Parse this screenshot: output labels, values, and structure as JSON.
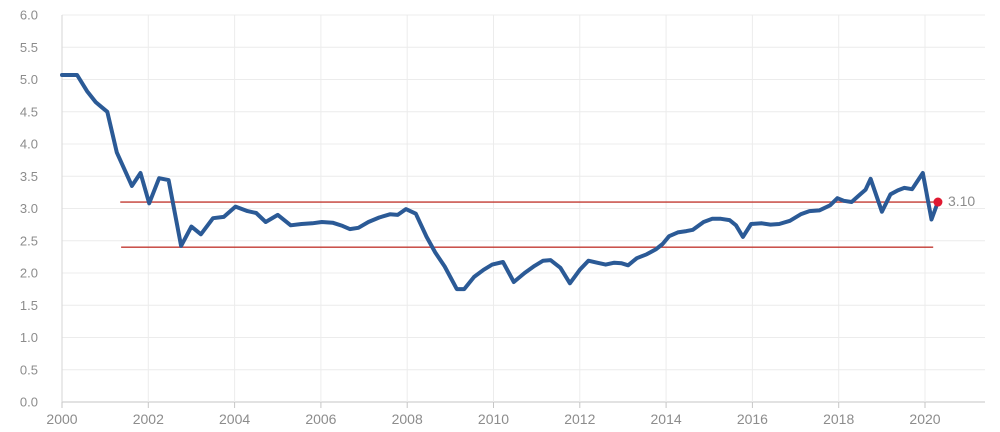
{
  "chart": {
    "background": "#ffffff",
    "colors": {
      "grid": "#ececec",
      "axis_line": "#c6c6c6",
      "left_axis_line": "#d6d6d6",
      "tick_mark": "#c6c6c6",
      "tick_label": "#8c8c8c",
      "series": "#2b5a96",
      "reference_line": "#c23a32",
      "end_dot": "#e01931",
      "end_label": "#8c8c8c"
    },
    "y_axis": {
      "min": 0,
      "max": 6,
      "tick_values": [
        6.0,
        5.5,
        5.0,
        4.5,
        4.0,
        3.5,
        3.0,
        2.5,
        2.0,
        1.5,
        1.0,
        0.5,
        0.0
      ],
      "tick_labels": [
        "6.0",
        "5.5",
        "5.0",
        "4.5",
        "4.0",
        "3.5",
        "3.0",
        "2.5",
        "2.0",
        "1.5",
        "1.0",
        "0.5",
        "0.0"
      ]
    },
    "x_axis": {
      "min": 2000,
      "max": 2021.4,
      "tick_values": [
        2000,
        2002,
        2004,
        2006,
        2008,
        2010,
        2012,
        2014,
        2016,
        2018,
        2020
      ],
      "tick_labels": [
        "2000",
        "2002",
        "2004",
        "2006",
        "2008",
        "2010",
        "2012",
        "2014",
        "2016",
        "2018",
        "2020"
      ]
    },
    "chart_data": {
      "type": "line",
      "title": "",
      "xlabel": "",
      "ylabel": "",
      "ylim": [
        0,
        6
      ],
      "grid": true,
      "legend": "none",
      "series": [
        {
          "name": "main-series",
          "color": "#2b5a96",
          "stroke_width": 4,
          "points": [
            [
              2000.0,
              5.07
            ],
            [
              2000.35,
              5.07
            ],
            [
              2000.58,
              4.82
            ],
            [
              2000.78,
              4.65
            ],
            [
              2000.92,
              4.57
            ],
            [
              2001.05,
              4.5
            ],
            [
              2001.27,
              3.87
            ],
            [
              2001.62,
              3.35
            ],
            [
              2001.82,
              3.55
            ],
            [
              2002.02,
              3.08
            ],
            [
              2002.25,
              3.47
            ],
            [
              2002.47,
              3.44
            ],
            [
              2002.76,
              2.42
            ],
            [
              2003.0,
              2.72
            ],
            [
              2003.22,
              2.6
            ],
            [
              2003.5,
              2.85
            ],
            [
              2003.75,
              2.87
            ],
            [
              2004.02,
              3.03
            ],
            [
              2004.3,
              2.96
            ],
            [
              2004.5,
              2.93
            ],
            [
              2004.72,
              2.79
            ],
            [
              2005.0,
              2.9
            ],
            [
              2005.3,
              2.74
            ],
            [
              2005.55,
              2.76
            ],
            [
              2005.8,
              2.77
            ],
            [
              2006.02,
              2.79
            ],
            [
              2006.27,
              2.78
            ],
            [
              2006.5,
              2.73
            ],
            [
              2006.67,
              2.68
            ],
            [
              2006.87,
              2.7
            ],
            [
              2007.1,
              2.79
            ],
            [
              2007.35,
              2.86
            ],
            [
              2007.6,
              2.91
            ],
            [
              2007.78,
              2.9
            ],
            [
              2007.97,
              2.99
            ],
            [
              2008.2,
              2.92
            ],
            [
              2008.45,
              2.56
            ],
            [
              2008.65,
              2.32
            ],
            [
              2008.87,
              2.1
            ],
            [
              2009.15,
              1.75
            ],
            [
              2009.32,
              1.75
            ],
            [
              2009.55,
              1.94
            ],
            [
              2009.77,
              2.05
            ],
            [
              2009.97,
              2.13
            ],
            [
              2010.22,
              2.17
            ],
            [
              2010.47,
              1.86
            ],
            [
              2010.72,
              2.0
            ],
            [
              2010.95,
              2.11
            ],
            [
              2011.15,
              2.19
            ],
            [
              2011.32,
              2.2
            ],
            [
              2011.55,
              2.08
            ],
            [
              2011.77,
              1.84
            ],
            [
              2012.0,
              2.05
            ],
            [
              2012.2,
              2.19
            ],
            [
              2012.4,
              2.16
            ],
            [
              2012.6,
              2.13
            ],
            [
              2012.8,
              2.16
            ],
            [
              2012.97,
              2.15
            ],
            [
              2013.12,
              2.12
            ],
            [
              2013.32,
              2.23
            ],
            [
              2013.55,
              2.29
            ],
            [
              2013.77,
              2.37
            ],
            [
              2013.92,
              2.45
            ],
            [
              2014.07,
              2.57
            ],
            [
              2014.27,
              2.63
            ],
            [
              2014.47,
              2.65
            ],
            [
              2014.62,
              2.67
            ],
            [
              2014.87,
              2.79
            ],
            [
              2015.07,
              2.84
            ],
            [
              2015.27,
              2.84
            ],
            [
              2015.47,
              2.82
            ],
            [
              2015.62,
              2.74
            ],
            [
              2015.78,
              2.56
            ],
            [
              2015.97,
              2.76
            ],
            [
              2016.22,
              2.77
            ],
            [
              2016.42,
              2.75
            ],
            [
              2016.62,
              2.76
            ],
            [
              2016.87,
              2.81
            ],
            [
              2017.12,
              2.91
            ],
            [
              2017.32,
              2.96
            ],
            [
              2017.55,
              2.97
            ],
            [
              2017.8,
              3.05
            ],
            [
              2017.97,
              3.16
            ],
            [
              2018.12,
              3.12
            ],
            [
              2018.3,
              3.1
            ],
            [
              2018.5,
              3.22
            ],
            [
              2018.62,
              3.29
            ],
            [
              2018.74,
              3.46
            ],
            [
              2019.0,
              2.95
            ],
            [
              2019.2,
              3.22
            ],
            [
              2019.37,
              3.28
            ],
            [
              2019.52,
              3.32
            ],
            [
              2019.7,
              3.3
            ],
            [
              2019.95,
              3.55
            ],
            [
              2020.15,
              2.83
            ],
            [
              2020.3,
              3.1
            ]
          ]
        }
      ],
      "reference_lines": [
        {
          "name": "upper",
          "value": 3.1,
          "start_year": 2001.35,
          "end_year": 2020.32,
          "color": "#c23a32"
        },
        {
          "name": "lower",
          "value": 2.4,
          "start_year": 2001.37,
          "end_year": 2020.19,
          "color": "#c23a32"
        }
      ],
      "end_marker": {
        "year": 2020.3,
        "value": 3.1,
        "label": "3.10",
        "dot_color": "#e01931"
      }
    }
  }
}
